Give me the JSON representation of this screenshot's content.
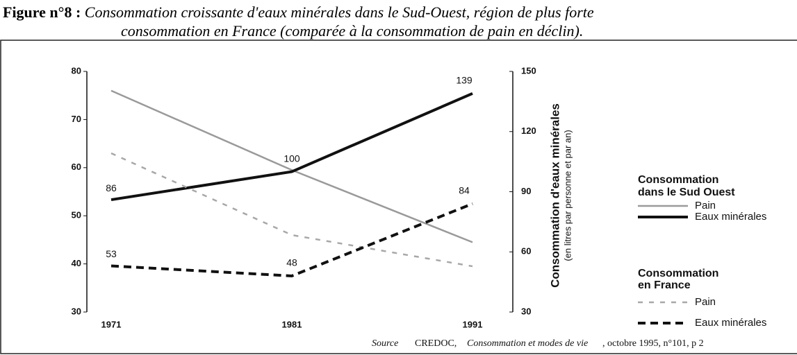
{
  "chart_data": {
    "type": "line",
    "figure_label": "Figure n°8 :",
    "title": [
      "Consommation croissante d'eaux minérales dans le Sud-Ouest, région de plus forte",
      "consommation en France (comparée à la consommation de pain en déclin)."
    ],
    "source": [
      "Source",
      "CREDOC,",
      "Consommation et modes de vie",
      ", octobre 1995, n°101, p 2"
    ],
    "y2label": [
      "Consommation d'eaux minérales",
      "(en litres par personne et par an)"
    ],
    "x": [
      1971,
      1981,
      1991
    ],
    "xlim": [
      1971,
      1991
    ],
    "xticks": [
      1971,
      1981,
      1991
    ],
    "ylim": [
      30,
      80
    ],
    "yticks": [
      30,
      40,
      50,
      60,
      70,
      80
    ],
    "y2lim": [
      30,
      150
    ],
    "y2ticks": [
      30,
      60,
      90,
      120,
      150
    ],
    "legend_groups": [
      [
        "Consommation",
        "dans le Sud Ouest"
      ],
      [
        "Consommation",
        "en France"
      ]
    ],
    "series": [
      {
        "name": "Pain",
        "color": "#9a9a9a",
        "group": 0,
        "dash": "solid",
        "values": [
          76,
          59.5,
          44.5
        ]
      },
      {
        "name": "Eaux minérales",
        "color": "#111111",
        "group": 0,
        "dash": "solid",
        "axis": "y2",
        "values": [
          86,
          100,
          139
        ]
      },
      {
        "name": "Pain",
        "color": "#a8a8a8",
        "group": 1,
        "dash": "dashed",
        "values": [
          63,
          46,
          39.5
        ]
      },
      {
        "name": "Eaux minérales",
        "color": "#111111",
        "group": 1,
        "dash": "dashed",
        "axis": "y2",
        "values": [
          53,
          48,
          84
        ]
      }
    ]
  }
}
